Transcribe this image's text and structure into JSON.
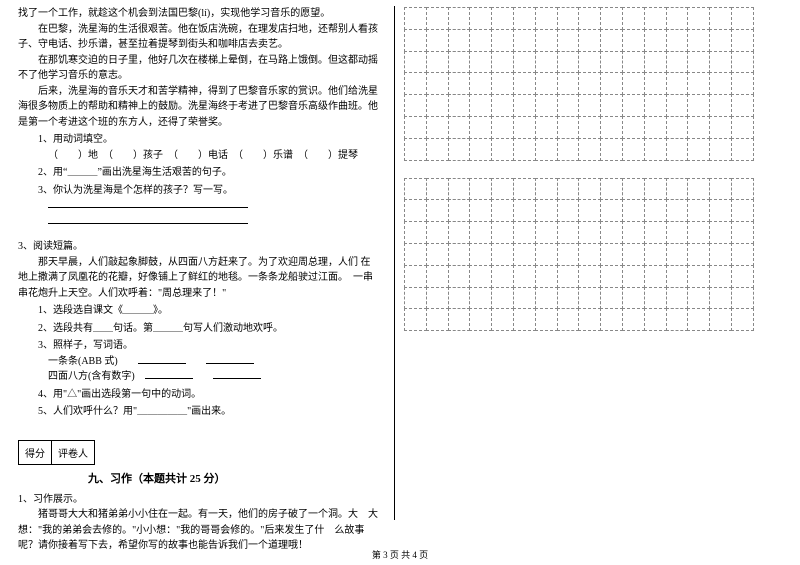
{
  "left": {
    "p1": "找了一个工作，就趁这个机会到法国巴黎(lí)，实现他学习音乐的愿望。",
    "p2": "在巴黎，洗星海的生活很艰苦。他在饭店洗碗，在理发店扫地，还帮别人看孩子、守电话、抄乐谱，甚至拉着提琴到街头和咖啡店去卖艺。",
    "p3": "在那饥寒交迫的日子里，他好几次在楼梯上晕倒，在马路上饿倒。但这都动摇不了他学习音乐的意志。",
    "p4": "后来，洗星海的音乐天才和苦学精神，得到了巴黎音乐家的赏识。他们给洗星海很多物质上的帮助和精神上的鼓励。洗星海终于考进了巴黎音乐高级作曲班。他是第一个考进这个班的东方人，还得了荣誉奖。",
    "q1_title": "1、用动词填空。",
    "q1_body_a": "（　　）地　（　　）孩子　（　　）电话　（　　）乐谱　（　　）提琴",
    "q2": "2、用“＿＿＿”画出洗星海生活艰苦的句子。",
    "q3": "3、你认为洗星海是个怎样的孩子？写一写。",
    "passage2_num": "3、阅读短篇。",
    "pp1": "那天早晨，人们敲起象脚鼓，从四面八方赶来了。为了欢迎周总理，人们 在地上撒满了凤凰花的花瓣，好像铺上了鲜红的地毯。一条条龙船驶过江面。　一串串花炮升上天空。人们欢呼着：\"周总理来了！\"",
    "pq1": "1、选段选自课文《＿＿＿》。",
    "pq2": "2、选段共有＿＿句话。第＿＿＿句写人们激动地欢呼。",
    "pq3": "3、照样子，写词语。",
    "pq3a": "一条条(ABB 式)",
    "pq3b": "四面八方(含有数字)",
    "pq4": "4、用\"△\"画出选段第一句中的动词。",
    "pq5": "5、人们欢呼什么？用\"＿＿＿＿＿\"画出来。",
    "score1": "得分",
    "score2": "评卷人",
    "sec9": "九、习作（本题共计 25 分）",
    "zw_num": "1、习作展示。",
    "zw_body": "猪哥哥大大和猪弟弟小小住在一起。有一天，他们的房子破了一个洞。大　大想：\"我的弟弟会去修的。\"小小想：\"我的哥哥会修的。\"后来发生了什　么故事呢？请你接着写下去，希望你写的故事也能告诉我们一个道理哦！"
  },
  "grid": {
    "rows": 7,
    "cols": 16,
    "blocks": 2
  },
  "footer": "第 3 页 共 4 页"
}
